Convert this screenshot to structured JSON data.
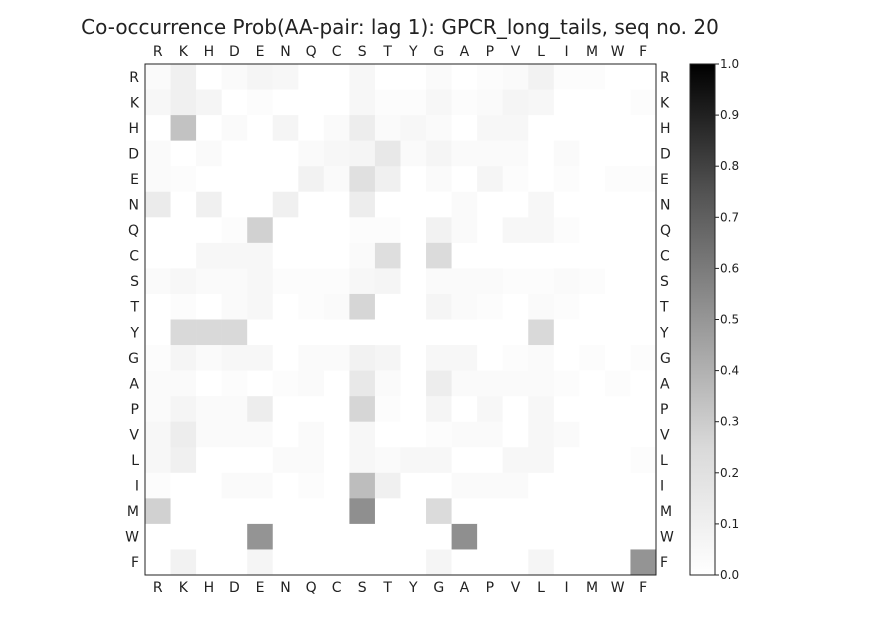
{
  "chart_data": {
    "type": "heatmap",
    "title": "Co-occurrence Prob(AA-pair: lag 1):  GPCR_long_tails, seq no. 20",
    "labels": [
      "R",
      "K",
      "H",
      "D",
      "E",
      "N",
      "Q",
      "C",
      "S",
      "T",
      "Y",
      "G",
      "A",
      "P",
      "V",
      "L",
      "I",
      "M",
      "W",
      "F"
    ],
    "values": [
      [
        0.02,
        0.06,
        0,
        0.02,
        0.04,
        0.03,
        0,
        0,
        0.03,
        0,
        0,
        0.02,
        0,
        0.01,
        0.02,
        0.05,
        0.01,
        0.01,
        0,
        0
      ],
      [
        0.03,
        0.06,
        0.04,
        0,
        0.01,
        0,
        0,
        0,
        0.03,
        0.01,
        0.01,
        0.03,
        0.01,
        0.02,
        0.04,
        0.03,
        0,
        0,
        0,
        0.01
      ],
      [
        0,
        0.24,
        0,
        0.02,
        0,
        0.04,
        0,
        0.02,
        0.07,
        0.02,
        0.03,
        0.02,
        0,
        0.03,
        0.03,
        0,
        0,
        0,
        0,
        0
      ],
      [
        0.02,
        0,
        0.02,
        0,
        0,
        0,
        0.02,
        0.03,
        0.04,
        0.09,
        0.02,
        0.04,
        0.02,
        0.02,
        0.02,
        0,
        0.02,
        0,
        0,
        0
      ],
      [
        0.02,
        0.01,
        0,
        0,
        0,
        0,
        0.05,
        0.02,
        0.12,
        0.06,
        0,
        0.02,
        0,
        0.04,
        0.01,
        0,
        0.01,
        0,
        0.01,
        0.01
      ],
      [
        0.08,
        0,
        0.06,
        0,
        0,
        0.06,
        0,
        0,
        0.07,
        0,
        0,
        0,
        0.02,
        0,
        0,
        0.03,
        0,
        0,
        0,
        0
      ],
      [
        0,
        0,
        0,
        0.01,
        0.18,
        0,
        0,
        0,
        0.01,
        0.01,
        0,
        0.05,
        0.02,
        0,
        0.03,
        0.03,
        0.01,
        0,
        0,
        0
      ],
      [
        0,
        0,
        0.03,
        0.03,
        0.03,
        0,
        0,
        0,
        0.02,
        0.13,
        0,
        0.14,
        0,
        0,
        0,
        0,
        0,
        0,
        0,
        0
      ],
      [
        0.02,
        0.03,
        0.02,
        0.02,
        0.03,
        0.01,
        0.01,
        0.01,
        0.03,
        0.04,
        0,
        0.02,
        0.02,
        0.02,
        0.01,
        0.01,
        0.02,
        0.01,
        0,
        0
      ],
      [
        0,
        0.01,
        0,
        0.02,
        0.03,
        0,
        0.01,
        0.02,
        0.16,
        0,
        0,
        0.04,
        0.02,
        0.01,
        0,
        0.02,
        0.01,
        0,
        0,
        0
      ],
      [
        0,
        0.15,
        0.15,
        0.15,
        0,
        0,
        0,
        0,
        0,
        0,
        0,
        0,
        0,
        0,
        0,
        0.15,
        0,
        0,
        0,
        0
      ],
      [
        0.01,
        0.04,
        0.02,
        0.03,
        0.03,
        0,
        0.02,
        0.02,
        0.05,
        0.04,
        0,
        0.03,
        0.03,
        0,
        0.01,
        0.02,
        0,
        0.01,
        0,
        0.01
      ],
      [
        0.02,
        0.02,
        0,
        0.01,
        0,
        0.01,
        0.02,
        0,
        0.09,
        0.02,
        0,
        0.07,
        0.02,
        0.02,
        0.02,
        0.02,
        0.01,
        0,
        0.01,
        0
      ],
      [
        0.02,
        0.04,
        0.02,
        0.02,
        0.07,
        0,
        0,
        0,
        0.16,
        0.01,
        0,
        0.04,
        0,
        0.03,
        0,
        0.03,
        0,
        0,
        0,
        0
      ],
      [
        0.03,
        0.07,
        0.02,
        0.02,
        0.02,
        0,
        0.02,
        0,
        0.03,
        0,
        0,
        0.01,
        0.02,
        0.02,
        0,
        0.03,
        0.02,
        0,
        0,
        0
      ],
      [
        0.03,
        0.06,
        0,
        0,
        0,
        0.02,
        0.02,
        0,
        0.03,
        0.02,
        0.03,
        0.03,
        0,
        0,
        0.03,
        0.03,
        0,
        0,
        0,
        0.01
      ],
      [
        0.01,
        0,
        0,
        0.02,
        0.02,
        0,
        0.01,
        0,
        0.26,
        0.06,
        0,
        0,
        0.02,
        0.02,
        0.02,
        0,
        0,
        0,
        0,
        0
      ],
      [
        0.18,
        0,
        0,
        0,
        0,
        0,
        0,
        0,
        0.44,
        0,
        0,
        0.14,
        0,
        0,
        0,
        0,
        0,
        0,
        0,
        0
      ],
      [
        0,
        0,
        0,
        0,
        0.42,
        0,
        0,
        0,
        0,
        0,
        0,
        0,
        0.44,
        0,
        0,
        0,
        0,
        0,
        0,
        0
      ],
      [
        0,
        0.05,
        0,
        0,
        0.04,
        0,
        0,
        0,
        0,
        0,
        0,
        0.04,
        0,
        0,
        0,
        0.04,
        0,
        0,
        0,
        0.42
      ]
    ],
    "colorbar": {
      "min": 0.0,
      "max": 1.0,
      "ticks": [
        "0.0",
        "0.1",
        "0.2",
        "0.3",
        "0.4",
        "0.5",
        "0.6",
        "0.7",
        "0.8",
        "0.9",
        "1.0"
      ],
      "colormap": "Greys"
    },
    "grid": false
  }
}
